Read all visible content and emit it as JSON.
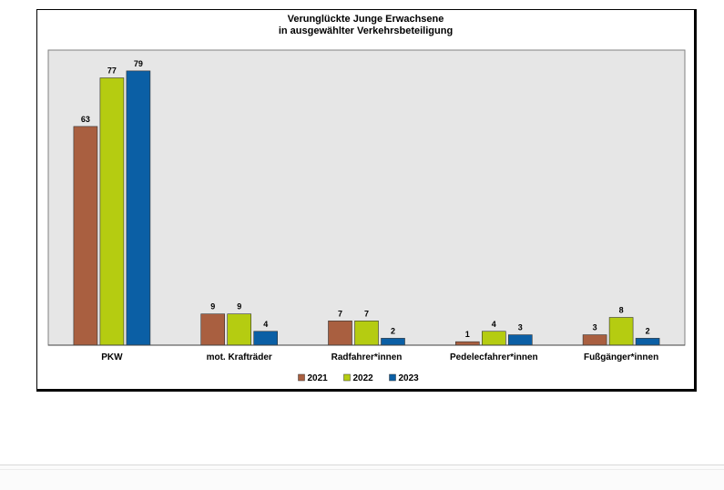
{
  "chart_data": {
    "type": "bar",
    "title_lines": [
      "Verunglückte Junge Erwachsene",
      "in ausgewählter Verkehrsbeteiligung"
    ],
    "categories": [
      "PKW",
      "mot. Krafträder",
      "Radfahrer*innen",
      "Pedelecfahrer*innen",
      "Fußgänger*innen"
    ],
    "series": [
      {
        "name": "2021",
        "color": "#a95f40",
        "values": [
          63,
          9,
          7,
          1,
          3
        ]
      },
      {
        "name": "2022",
        "color": "#b5cc11",
        "values": [
          77,
          9,
          7,
          4,
          8
        ]
      },
      {
        "name": "2023",
        "color": "#0b5fa5",
        "values": [
          79,
          4,
          2,
          3,
          2
        ]
      }
    ],
    "ylim": [
      0,
      85
    ],
    "grid": false,
    "legend_position": "bottom",
    "plot_background": "#e6e6e6"
  }
}
